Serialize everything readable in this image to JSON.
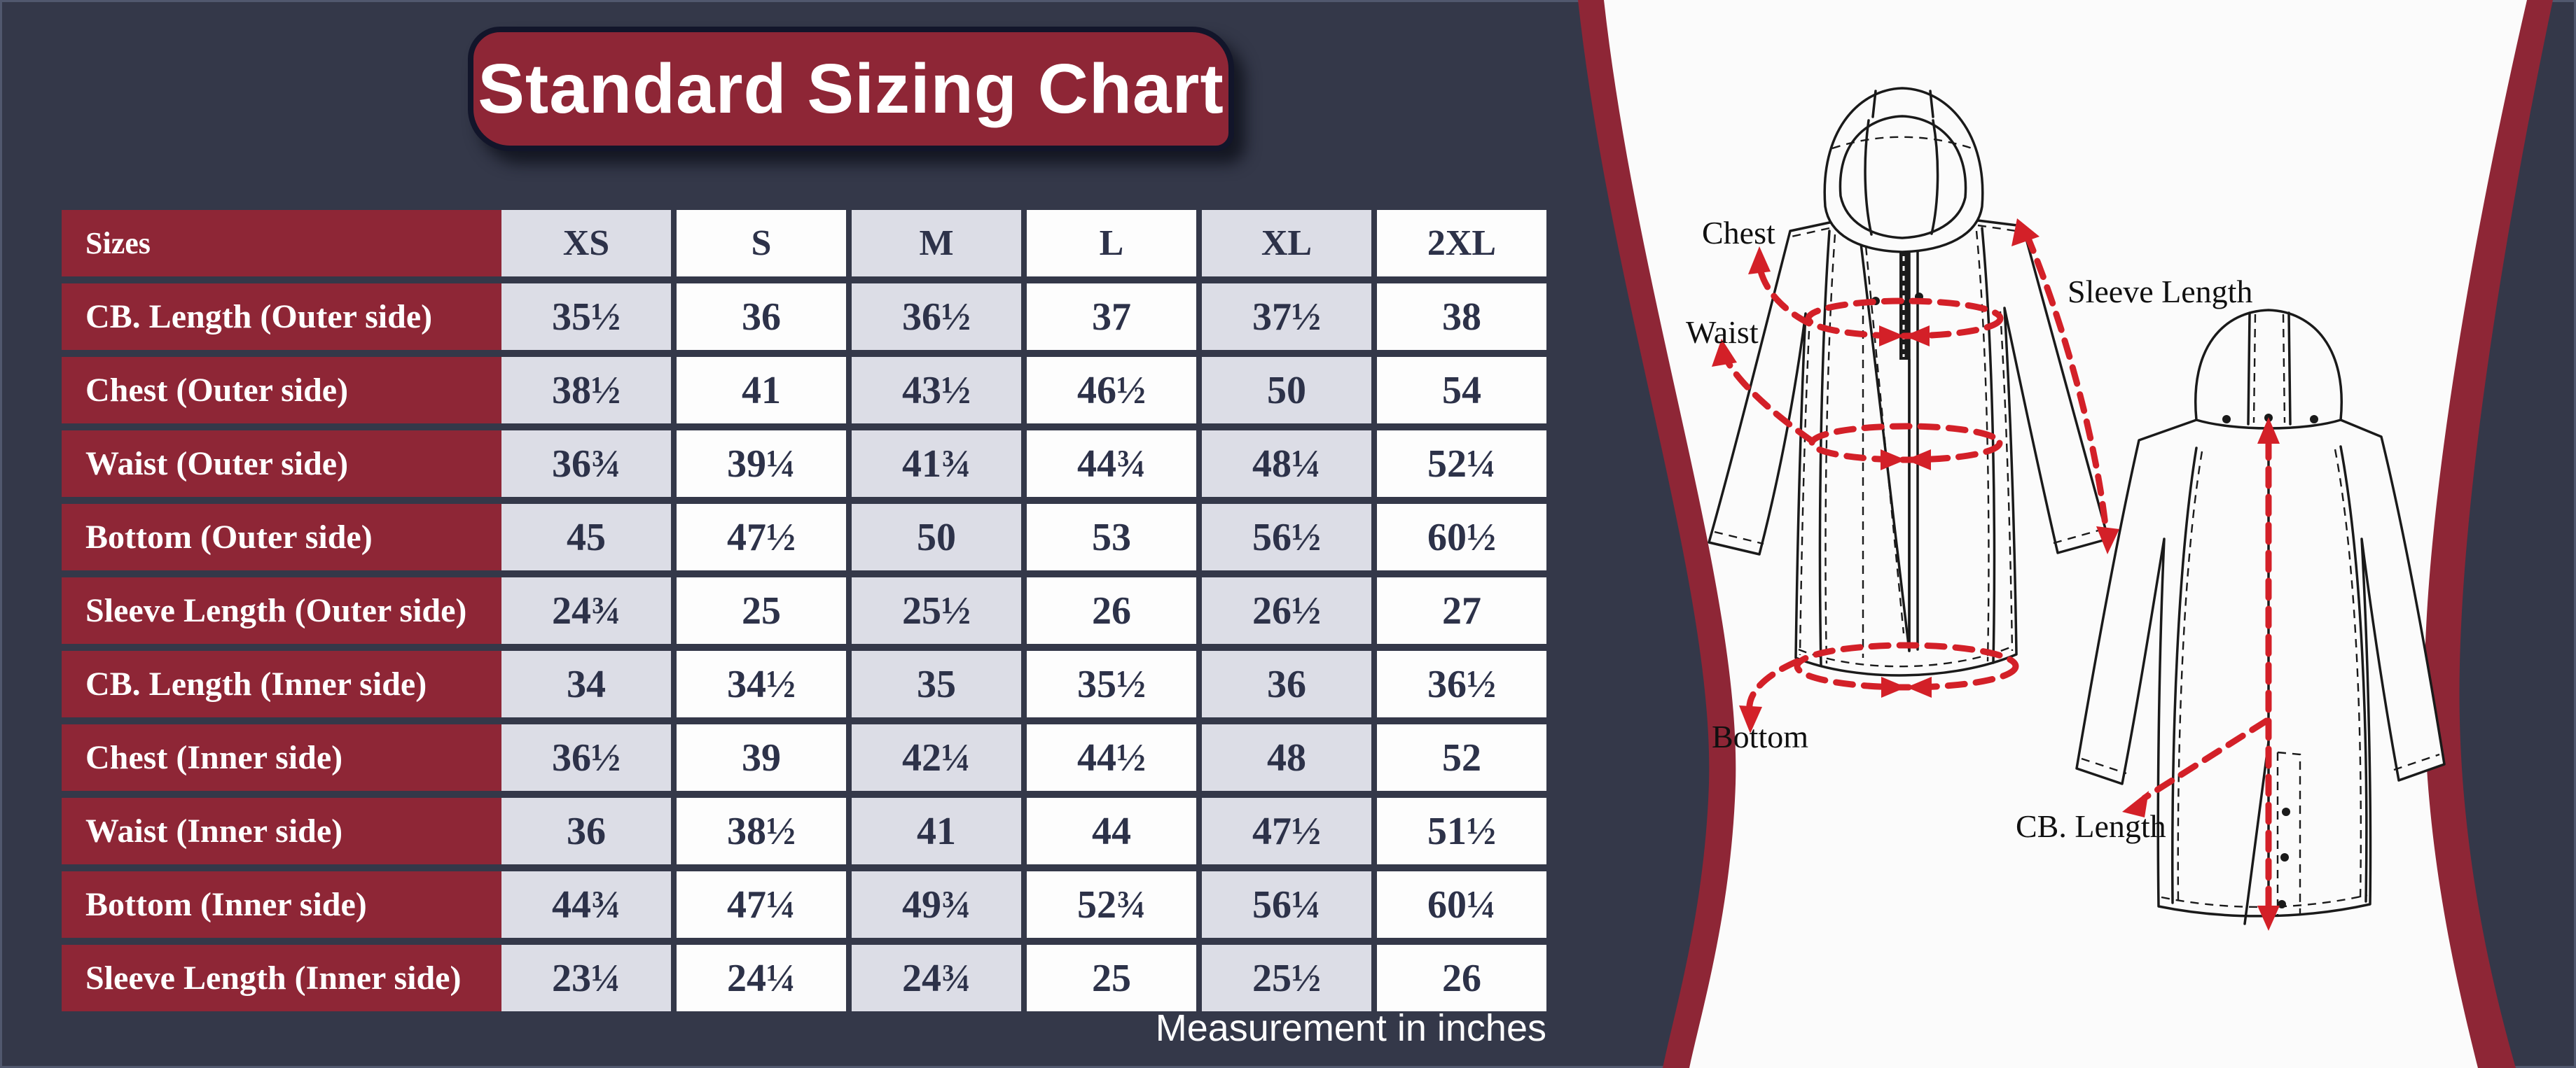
{
  "title": "Standard Sizing Chart",
  "footnote": "Measurement in inches",
  "colors": {
    "background_navy": "#343849",
    "maroon": "#8e2636",
    "shaded_column": "#dcdde6",
    "plain_column": "#fdfdfd",
    "value_text": "#2d3249",
    "accent_red": "#d32028",
    "panel_white": "#fbfbfb"
  },
  "table": {
    "header_label": "Sizes",
    "sizes": [
      "XS",
      "S",
      "M",
      "L",
      "XL",
      "2XL"
    ]
  },
  "chart_data": {
    "type": "table",
    "title": "Standard Sizing Chart",
    "unit_note": "Measurement in inches",
    "columns": [
      "Sizes",
      "XS",
      "S",
      "M",
      "L",
      "XL",
      "2XL"
    ],
    "rows": [
      {
        "label": "CB. Length (Outer side)",
        "values": [
          "35½",
          "36",
          "36½",
          "37",
          "37½",
          "38"
        ]
      },
      {
        "label": "Chest (Outer side)",
        "values": [
          "38½",
          "41",
          "43½",
          "46½",
          "50",
          "54"
        ]
      },
      {
        "label": "Waist (Outer side)",
        "values": [
          "36¾",
          "39¼",
          "41¾",
          "44¾",
          "48¼",
          "52¼"
        ]
      },
      {
        "label": "Bottom (Outer side)",
        "values": [
          "45",
          "47½",
          "50",
          "53",
          "56½",
          "60½"
        ]
      },
      {
        "label": "Sleeve Length (Outer side)",
        "values": [
          "24¾",
          "25",
          "25½",
          "26",
          "26½",
          "27"
        ]
      },
      {
        "label": "CB. Length (Inner side)",
        "values": [
          "34",
          "34½",
          "35",
          "35½",
          "36",
          "36½"
        ]
      },
      {
        "label": "Chest (Inner side)",
        "values": [
          "36½",
          "39",
          "42¼",
          "44½",
          "48",
          "52"
        ]
      },
      {
        "label": "Waist (Inner side)",
        "values": [
          "36",
          "38½",
          "41",
          "44",
          "47½",
          "51½"
        ]
      },
      {
        "label": "Bottom (Inner side)",
        "values": [
          "44¾",
          "47¼",
          "49¾",
          "52¾",
          "56¼",
          "60¼"
        ]
      },
      {
        "label": "Sleeve Length (Inner side)",
        "values": [
          "23¼",
          "24¼",
          "24¾",
          "25",
          "25½",
          "26"
        ]
      }
    ]
  },
  "diagram": {
    "labels": {
      "chest": "Chest",
      "waist": "Waist",
      "sleeve_length": "Sleeve Length",
      "bottom": "Bottom",
      "cb_length": "CB. Length"
    }
  }
}
